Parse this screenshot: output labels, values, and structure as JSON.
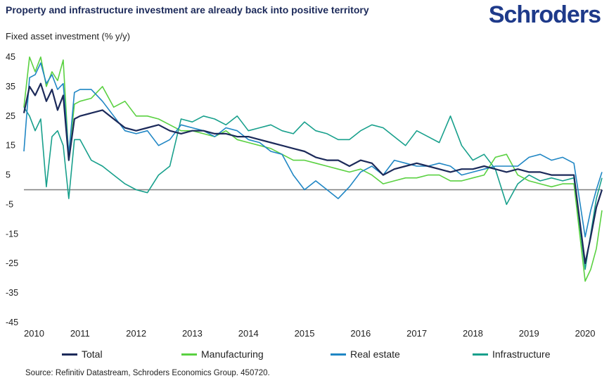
{
  "header": {
    "title": "Property and infrastructure investment are already back into positive territory",
    "logo_text": "Schroders"
  },
  "source": "Source: Refinitiv Datastream, Schroders Economics Group. 450720.",
  "colors": {
    "total": "#1c2a5a",
    "manufacturing": "#5ad141",
    "real_estate": "#1f86c4",
    "infrastructure": "#18a08c",
    "zero_line": "#7f7f7f",
    "title": "#1c2a5a",
    "logo": "#1e3a8a"
  },
  "chart_data": {
    "type": "line",
    "title": "Property and infrastructure investment are already back into positive territory",
    "xlabel": "",
    "ylabel": "Fixed asset investment (% y/y)",
    "ylim": [
      -45,
      45
    ],
    "yticks": [
      45,
      35,
      25,
      15,
      5,
      -5,
      -15,
      -25,
      -35,
      -45
    ],
    "xlim": [
      2010.0,
      2020.3
    ],
    "xticks": [
      2010,
      2011,
      2012,
      2013,
      2014,
      2015,
      2016,
      2017,
      2018,
      2019,
      2020
    ],
    "grid": false,
    "legend_position": "bottom",
    "series": [
      {
        "name": "Total",
        "key": "total",
        "x": [
          2010.0,
          2010.1,
          2010.2,
          2010.3,
          2010.4,
          2010.5,
          2010.6,
          2010.7,
          2010.8,
          2010.9,
          2011.0,
          2011.2,
          2011.4,
          2011.6,
          2011.8,
          2012.0,
          2012.2,
          2012.4,
          2012.6,
          2012.8,
          2013.0,
          2013.2,
          2013.4,
          2013.6,
          2013.8,
          2014.0,
          2014.2,
          2014.4,
          2014.6,
          2014.8,
          2015.0,
          2015.2,
          2015.4,
          2015.6,
          2015.8,
          2016.0,
          2016.2,
          2016.4,
          2016.6,
          2016.8,
          2017.0,
          2017.2,
          2017.4,
          2017.6,
          2017.8,
          2018.0,
          2018.2,
          2018.4,
          2018.6,
          2018.8,
          2019.0,
          2019.2,
          2019.4,
          2019.6,
          2019.8,
          2020.0,
          2020.1,
          2020.2,
          2020.3
        ],
        "y": [
          26,
          35,
          32,
          36,
          30,
          34,
          27,
          32,
          10,
          24,
          25,
          26,
          27,
          24,
          21,
          20,
          21,
          22,
          20,
          19,
          20,
          20,
          19,
          19,
          18,
          18,
          17,
          16,
          15,
          14,
          13,
          11,
          10,
          10,
          8,
          10,
          9,
          5,
          7,
          8,
          9,
          8,
          7,
          6,
          7,
          7,
          8,
          7,
          6,
          7,
          6,
          6,
          5,
          5,
          5,
          -25,
          -16,
          -6,
          0
        ]
      },
      {
        "name": "Manufacturing",
        "key": "manufacturing",
        "x": [
          2010.0,
          2010.1,
          2010.2,
          2010.3,
          2010.4,
          2010.5,
          2010.6,
          2010.7,
          2010.8,
          2010.9,
          2011.0,
          2011.2,
          2011.4,
          2011.6,
          2011.8,
          2012.0,
          2012.2,
          2012.4,
          2012.6,
          2012.8,
          2013.0,
          2013.2,
          2013.4,
          2013.6,
          2013.8,
          2014.0,
          2014.2,
          2014.4,
          2014.6,
          2014.8,
          2015.0,
          2015.2,
          2015.4,
          2015.6,
          2015.8,
          2016.0,
          2016.2,
          2016.4,
          2016.6,
          2016.8,
          2017.0,
          2017.2,
          2017.4,
          2017.6,
          2017.8,
          2018.0,
          2018.2,
          2018.4,
          2018.6,
          2018.8,
          2019.0,
          2019.2,
          2019.4,
          2019.6,
          2019.8,
          2020.0,
          2020.1,
          2020.2,
          2020.3
        ],
        "y": [
          28,
          45,
          40,
          45,
          35,
          40,
          37,
          44,
          11,
          29,
          30,
          31,
          35,
          28,
          30,
          25,
          25,
          24,
          22,
          20,
          20,
          19,
          18,
          20,
          17,
          16,
          15,
          14,
          12,
          10,
          10,
          9,
          8,
          7,
          6,
          7,
          5,
          2,
          3,
          4,
          4,
          5,
          5,
          3,
          3,
          4,
          5,
          11,
          12,
          5,
          3,
          2,
          1,
          2,
          2,
          -31,
          -27,
          -20,
          -7
        ]
      },
      {
        "name": "Real estate",
        "key": "real_estate",
        "x": [
          2010.0,
          2010.1,
          2010.2,
          2010.3,
          2010.4,
          2010.5,
          2010.6,
          2010.7,
          2010.8,
          2010.9,
          2011.0,
          2011.2,
          2011.4,
          2011.6,
          2011.8,
          2012.0,
          2012.2,
          2012.4,
          2012.6,
          2012.8,
          2013.0,
          2013.2,
          2013.4,
          2013.6,
          2013.8,
          2014.0,
          2014.2,
          2014.4,
          2014.6,
          2014.8,
          2015.0,
          2015.2,
          2015.4,
          2015.6,
          2015.8,
          2016.0,
          2016.2,
          2016.4,
          2016.6,
          2016.8,
          2017.0,
          2017.2,
          2017.4,
          2017.6,
          2017.8,
          2018.0,
          2018.2,
          2018.4,
          2018.6,
          2018.8,
          2019.0,
          2019.2,
          2019.4,
          2019.6,
          2019.8,
          2020.0,
          2020.1,
          2020.2,
          2020.3
        ],
        "y": [
          13,
          38,
          39,
          43,
          36,
          39,
          34,
          36,
          12,
          33,
          34,
          34,
          30,
          25,
          20,
          19,
          20,
          15,
          17,
          22,
          21,
          20,
          18,
          21,
          20,
          17,
          16,
          13,
          12,
          5,
          0,
          3,
          0,
          -3,
          1,
          6,
          8,
          5,
          10,
          9,
          8,
          8,
          9,
          8,
          5,
          6,
          7,
          8,
          8,
          8,
          11,
          12,
          10,
          11,
          9,
          -16,
          -7,
          0,
          6
        ]
      },
      {
        "name": "Infrastructure",
        "key": "infrastructure",
        "x": [
          2010.0,
          2010.1,
          2010.2,
          2010.3,
          2010.4,
          2010.5,
          2010.6,
          2010.7,
          2010.8,
          2010.9,
          2011.0,
          2011.2,
          2011.4,
          2011.6,
          2011.8,
          2012.0,
          2012.2,
          2012.4,
          2012.6,
          2012.8,
          2013.0,
          2013.2,
          2013.4,
          2013.6,
          2013.8,
          2014.0,
          2014.2,
          2014.4,
          2014.6,
          2014.8,
          2015.0,
          2015.2,
          2015.4,
          2015.6,
          2015.8,
          2016.0,
          2016.2,
          2016.4,
          2016.6,
          2016.8,
          2017.0,
          2017.2,
          2017.4,
          2017.6,
          2017.8,
          2018.0,
          2018.2,
          2018.4,
          2018.6,
          2018.8,
          2019.0,
          2019.2,
          2019.4,
          2019.6,
          2019.8,
          2020.0,
          2020.1,
          2020.2,
          2020.3
        ],
        "y": [
          28,
          25,
          20,
          24,
          1,
          18,
          20,
          15,
          -3,
          17,
          17,
          10,
          8,
          5,
          2,
          0,
          -1,
          5,
          8,
          24,
          23,
          25,
          24,
          22,
          25,
          20,
          21,
          22,
          20,
          19,
          23,
          20,
          19,
          17,
          17,
          20,
          22,
          21,
          18,
          15,
          20,
          18,
          16,
          25,
          15,
          10,
          12,
          7,
          -5,
          2,
          5,
          3,
          4,
          3,
          4,
          -27,
          -15,
          -3,
          4
        ]
      }
    ]
  }
}
